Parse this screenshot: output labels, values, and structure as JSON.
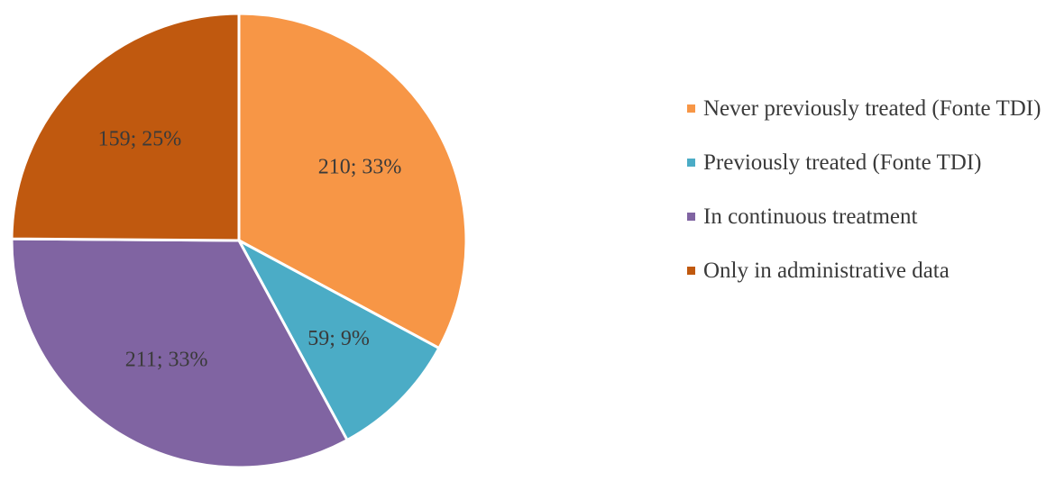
{
  "chart_data": {
    "type": "pie",
    "title": "",
    "start_angle_deg": 0,
    "direction": "clockwise",
    "slices": [
      {
        "name": "Never previously treated (Fonte TDI)",
        "value": 210,
        "percent": 33,
        "label": "210; 33%",
        "color": "#f79646"
      },
      {
        "name": "Previously treated (Fonte TDI)",
        "value": 59,
        "percent": 9,
        "label": "59; 9%",
        "color": "#4bacc6"
      },
      {
        "name": "In continuous treatment",
        "value": 211,
        "percent": 33,
        "label": "211; 33%",
        "color": "#8064a2"
      },
      {
        "name": "Only in administrative data",
        "value": 159,
        "percent": 25,
        "label": "159; 25%",
        "color": "#c0590f"
      }
    ],
    "legend": {
      "position": "right",
      "items": [
        "Never previously treated (Fonte TDI)",
        "Previously treated (Fonte TDI)",
        "In continuous treatment",
        "Only in administrative data"
      ]
    }
  }
}
